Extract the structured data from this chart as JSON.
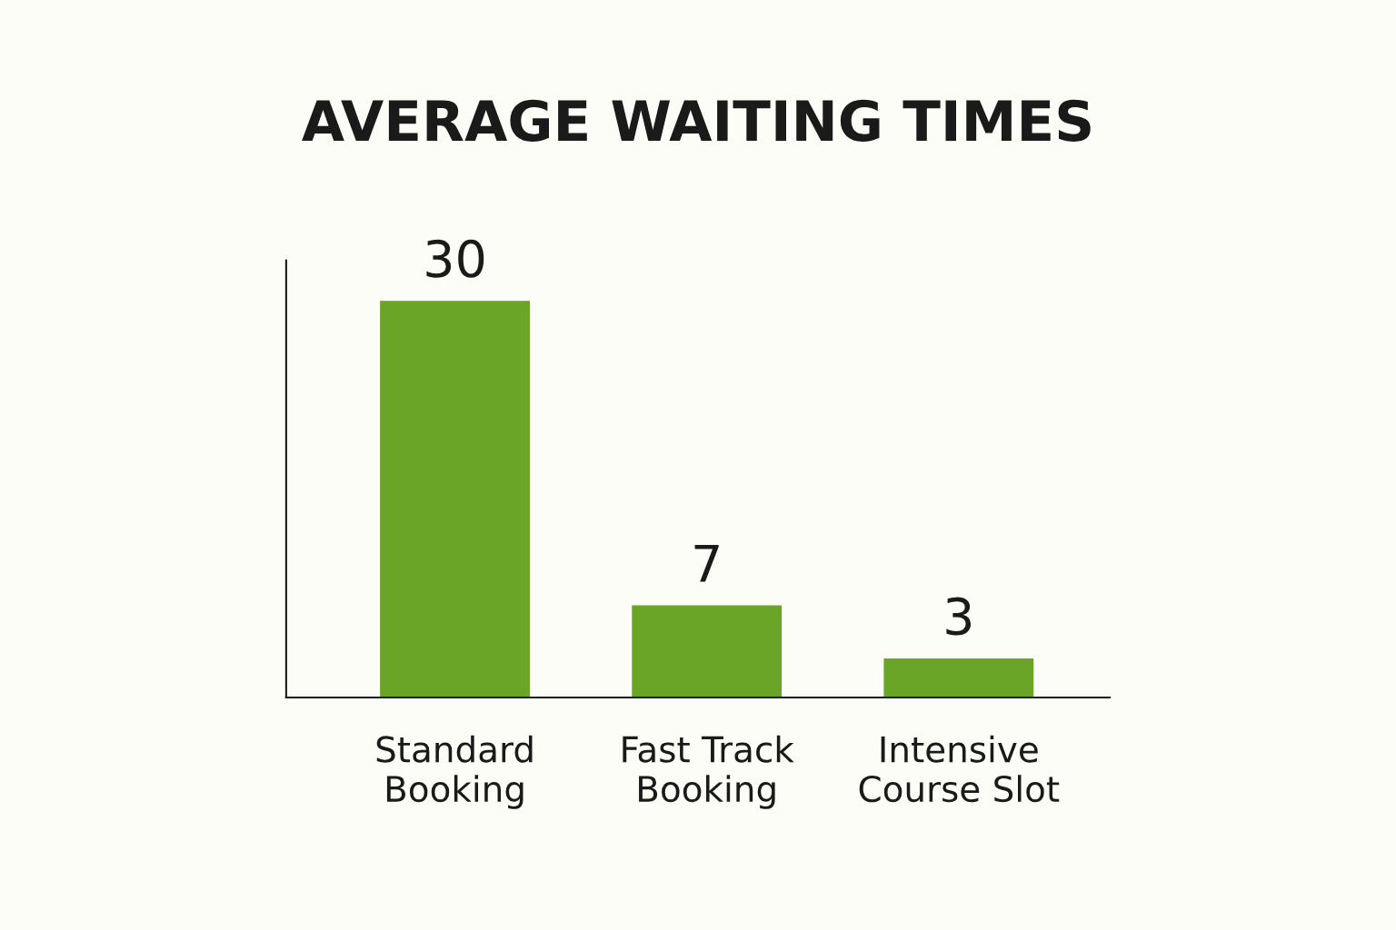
{
  "chart_data": {
    "type": "bar",
    "title": "AVERAGE WAITING TIMES",
    "categories": [
      "Standard\nBooking",
      "Fast Track\nBooking",
      "Intensive\nCourse Slot"
    ],
    "values": [
      30,
      7,
      3
    ],
    "color": "#6aa527",
    "data_labels": true,
    "tick_labels": "x"
  }
}
